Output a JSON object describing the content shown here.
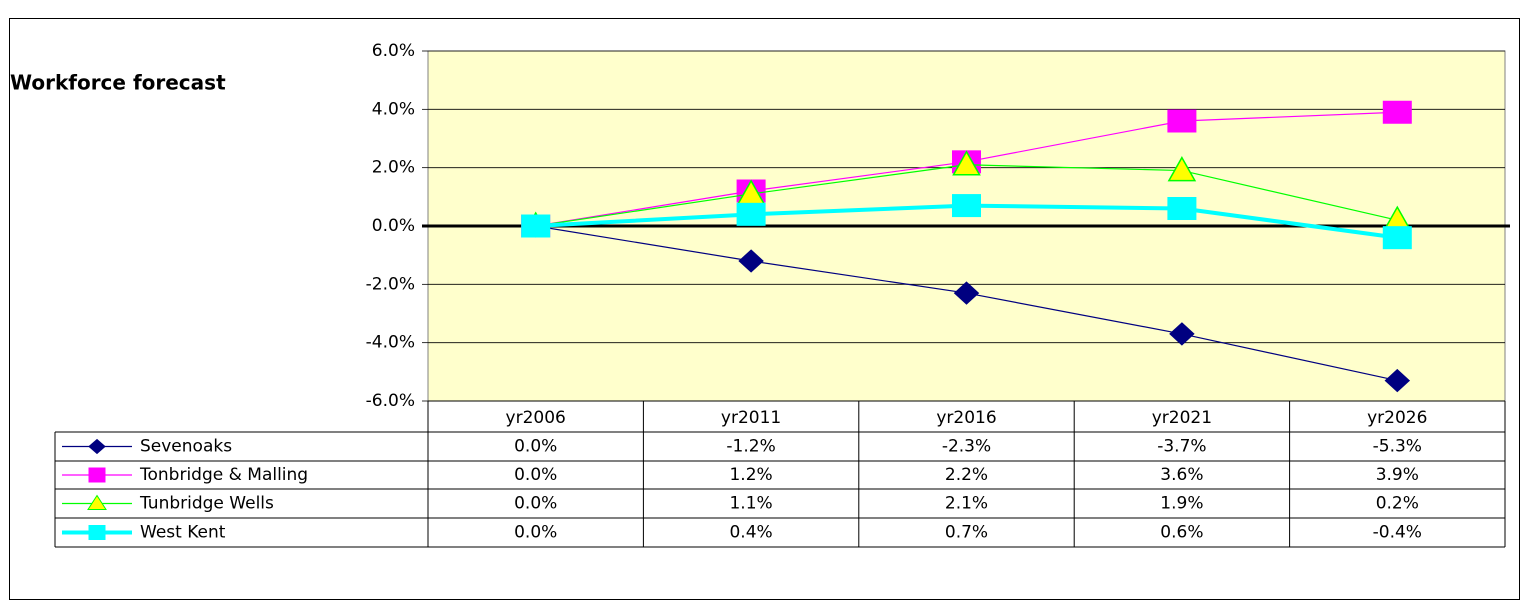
{
  "chart_data": {
    "type": "line",
    "title": "Workforce forecast",
    "categories": [
      "yr2006",
      "yr2011",
      "yr2016",
      "yr2021",
      "yr2026"
    ],
    "series": [
      {
        "name": "Sevenoaks",
        "color": "#000080",
        "marker": "diamond",
        "marker_color": "#000080",
        "line_width": 1.2,
        "values": [
          0.0,
          -1.2,
          -2.3,
          -3.7,
          -5.3
        ],
        "value_labels": [
          "0.0%",
          "-1.2%",
          "-2.3%",
          "-3.7%",
          "-5.3%"
        ]
      },
      {
        "name": "Tonbridge & Malling",
        "color": "#ff00ff",
        "marker": "square",
        "marker_color": "#ff00ff",
        "line_width": 1.2,
        "values": [
          0.0,
          1.2,
          2.2,
          3.6,
          3.9
        ],
        "value_labels": [
          "0.0%",
          "1.2%",
          "2.2%",
          "3.6%",
          "3.9%"
        ]
      },
      {
        "name": "Tunbridge Wells",
        "color": "#00ff00",
        "marker": "triangle",
        "marker_color": "#ffff00",
        "line_width": 1.2,
        "values": [
          0.0,
          1.1,
          2.1,
          1.9,
          0.2
        ],
        "value_labels": [
          "0.0%",
          "1.1%",
          "2.1%",
          "1.9%",
          "0.2%"
        ]
      },
      {
        "name": "West Kent",
        "color": "#00ffff",
        "marker": "square",
        "marker_color": "#00ffff",
        "line_width": 4,
        "values": [
          0.0,
          0.4,
          0.7,
          0.6,
          -0.4
        ],
        "value_labels": [
          "0.0%",
          "0.4%",
          "0.7%",
          "0.6%",
          "-0.4%"
        ]
      }
    ],
    "ylim": [
      -6,
      6
    ],
    "yticks": [
      {
        "value": -6,
        "label": "-6.0%"
      },
      {
        "value": -4,
        "label": "-4.0%"
      },
      {
        "value": -2,
        "label": "-2.0%"
      },
      {
        "value": 0,
        "label": "0.0%"
      },
      {
        "value": 2,
        "label": "2.0%"
      },
      {
        "value": 4,
        "label": "4.0%"
      },
      {
        "value": 6,
        "label": "6.0%"
      }
    ],
    "grid": true,
    "plot_background": "#ffffcc"
  }
}
